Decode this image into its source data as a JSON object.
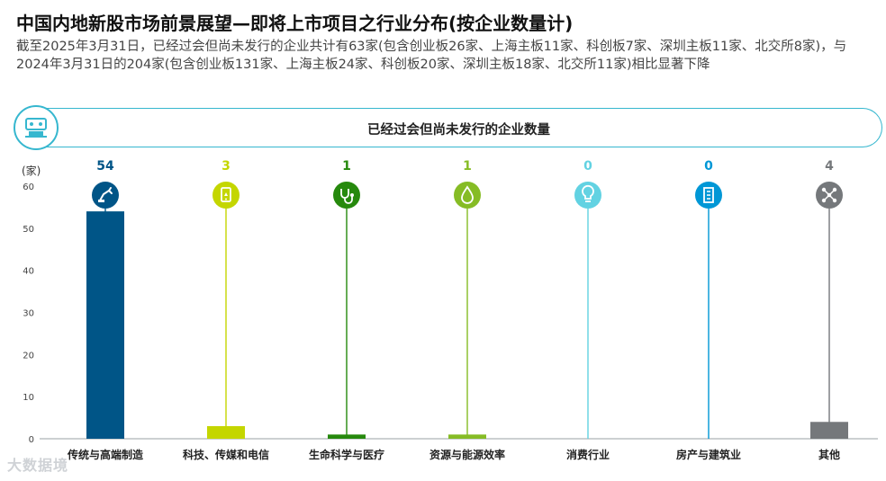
{
  "header": {
    "title": "中国内地新股市场前景展望—即将上市项目之行业分布(按企业数量计)",
    "subtitle": "截至2025年3月31日，已经过会但尚未发行的企业共计有63家(包含创业板26家、上海主板11家、科创板7家、深圳主板11家、北交所8家)，与2024年3月31日的204家(包含创业板131家、上海主板24家、科创板20家、深圳主板18家、北交所11家)相比显著下降"
  },
  "section": {
    "label": "已经过会但尚未发行的企业数量",
    "icon": "robot-arm-factory-icon"
  },
  "watermark": "大数据境",
  "chart_data": {
    "type": "bar",
    "unit": "(家)",
    "ylim": [
      0,
      60
    ],
    "yticks": [
      0,
      10,
      20,
      30,
      40,
      50,
      60
    ],
    "grid": false,
    "categories": [
      "传统与高端制造",
      "科技、传媒和电信",
      "生命科学与医疗",
      "资源与能源效率",
      "消费行业",
      "房产与建筑业",
      "其他"
    ],
    "values": [
      54,
      3,
      1,
      1,
      0,
      0,
      4
    ],
    "colors": [
      "#005587",
      "#c4d600",
      "#26890d",
      "#86bc25",
      "#62d2e2",
      "#0097d6",
      "#75787b"
    ],
    "icons": [
      "robot-arm-icon",
      "tablet-icon",
      "stethoscope-icon",
      "droplet-icon",
      "lightbulb-icon",
      "building-icon",
      "network-icon"
    ]
  }
}
